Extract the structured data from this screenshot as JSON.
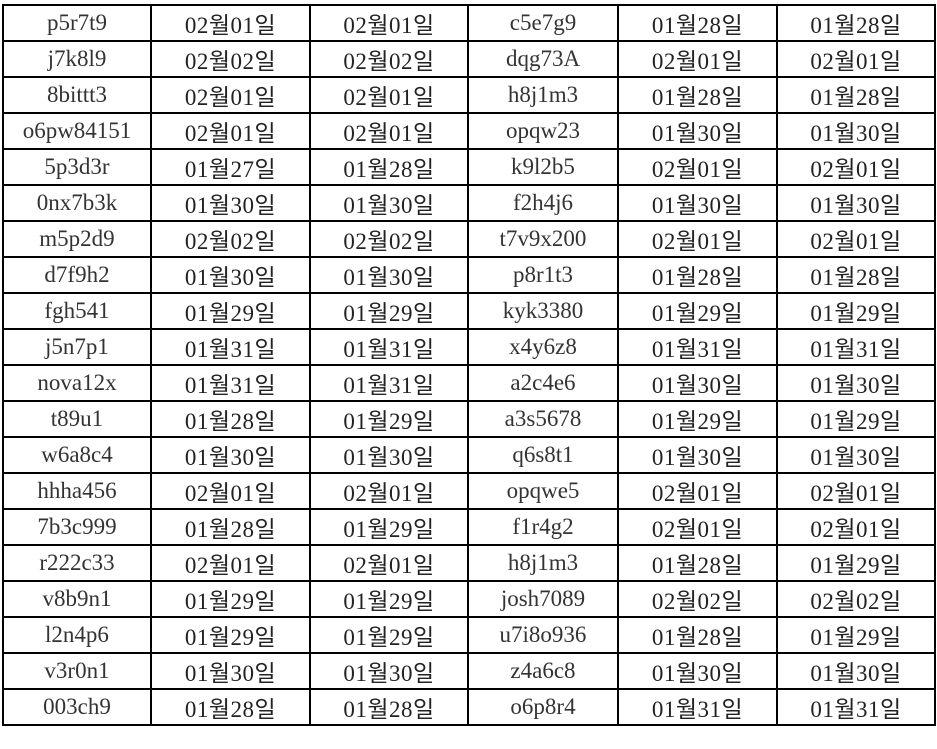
{
  "table": {
    "rows": [
      [
        "p5r7t9",
        "02월01일",
        "02월01일",
        "c5e7g9",
        "01월28일",
        "01월28일"
      ],
      [
        "j7k8l9",
        "02월02일",
        "02월02일",
        "dqg73A",
        "02월01일",
        "02월01일"
      ],
      [
        "8bittt3",
        "02월01일",
        "02월01일",
        "h8j1m3",
        "01월28일",
        "01월28일"
      ],
      [
        "o6pw84151",
        "02월01일",
        "02월01일",
        "opqw23",
        "01월30일",
        "01월30일"
      ],
      [
        "5p3d3r",
        "01월27일",
        "01월28일",
        "k9l2b5",
        "02월01일",
        "02월01일"
      ],
      [
        "0nx7b3k",
        "01월30일",
        "01월30일",
        "f2h4j6",
        "01월30일",
        "01월30일"
      ],
      [
        "m5p2d9",
        "02월02일",
        "02월02일",
        "t7v9x200",
        "02월01일",
        "02월01일"
      ],
      [
        "d7f9h2",
        "01월30일",
        "01월30일",
        "p8r1t3",
        "01월28일",
        "01월28일"
      ],
      [
        "fgh541",
        "01월29일",
        "01월29일",
        "kyk3380",
        "01월29일",
        "01월29일"
      ],
      [
        "j5n7p1",
        "01월31일",
        "01월31일",
        "x4y6z8",
        "01월31일",
        "01월31일"
      ],
      [
        "nova12x",
        "01월31일",
        "01월31일",
        "a2c4e6",
        "01월30일",
        "01월30일"
      ],
      [
        "t89u1",
        "01월28일",
        "01월29일",
        "a3s5678",
        "01월29일",
        "01월29일"
      ],
      [
        "w6a8c4",
        "01월30일",
        "01월30일",
        "q6s8t1",
        "01월30일",
        "01월30일"
      ],
      [
        "hhha456",
        "02월01일",
        "02월01일",
        "opqwe5",
        "02월01일",
        "02월01일"
      ],
      [
        "7b3c999",
        "01월28일",
        "01월29일",
        "f1r4g2",
        "02월01일",
        "02월01일"
      ],
      [
        "r222c33",
        "02월01일",
        "02월01일",
        "h8j1m3",
        "01월28일",
        "01월29일"
      ],
      [
        "v8b9n1",
        "01월29일",
        "01월29일",
        "josh7089",
        "02월02일",
        "02월02일"
      ],
      [
        "l2n4p6",
        "01월29일",
        "01월29일",
        "u7i8o936",
        "01월28일",
        "01월29일"
      ],
      [
        "v3r0n1",
        "01월30일",
        "01월30일",
        "z4a6c8",
        "01월30일",
        "01월30일"
      ],
      [
        "003ch9",
        "01월28일",
        "01월28일",
        "o6p8r4",
        "01월31일",
        "01월31일"
      ]
    ]
  }
}
